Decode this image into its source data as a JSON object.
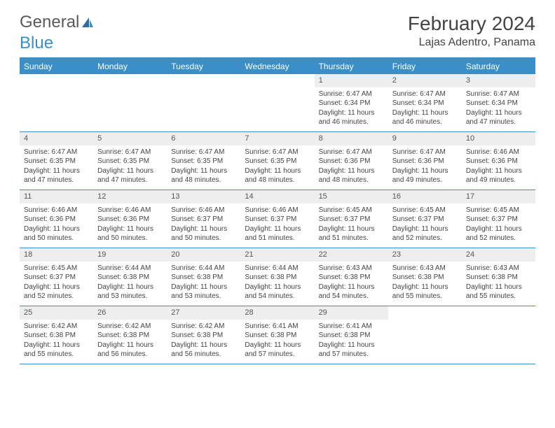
{
  "logo": {
    "text1": "General",
    "text2": "Blue"
  },
  "header": {
    "month": "February 2024",
    "location": "Lajas Adentro, Panama"
  },
  "colors": {
    "accent": "#3a8fc8",
    "header_bg": "#3a8fc8",
    "daynum_bg": "#eeeeee",
    "text": "#444444"
  },
  "days_of_week": [
    "Sunday",
    "Monday",
    "Tuesday",
    "Wednesday",
    "Thursday",
    "Friday",
    "Saturday"
  ],
  "weeks": [
    [
      {
        "day": null,
        "sunrise": "",
        "sunset": "",
        "daylight": ""
      },
      {
        "day": null,
        "sunrise": "",
        "sunset": "",
        "daylight": ""
      },
      {
        "day": null,
        "sunrise": "",
        "sunset": "",
        "daylight": ""
      },
      {
        "day": null,
        "sunrise": "",
        "sunset": "",
        "daylight": ""
      },
      {
        "day": "1",
        "sunrise": "Sunrise: 6:47 AM",
        "sunset": "Sunset: 6:34 PM",
        "daylight": "Daylight: 11 hours and 46 minutes."
      },
      {
        "day": "2",
        "sunrise": "Sunrise: 6:47 AM",
        "sunset": "Sunset: 6:34 PM",
        "daylight": "Daylight: 11 hours and 46 minutes."
      },
      {
        "day": "3",
        "sunrise": "Sunrise: 6:47 AM",
        "sunset": "Sunset: 6:34 PM",
        "daylight": "Daylight: 11 hours and 47 minutes."
      }
    ],
    [
      {
        "day": "4",
        "sunrise": "Sunrise: 6:47 AM",
        "sunset": "Sunset: 6:35 PM",
        "daylight": "Daylight: 11 hours and 47 minutes."
      },
      {
        "day": "5",
        "sunrise": "Sunrise: 6:47 AM",
        "sunset": "Sunset: 6:35 PM",
        "daylight": "Daylight: 11 hours and 47 minutes."
      },
      {
        "day": "6",
        "sunrise": "Sunrise: 6:47 AM",
        "sunset": "Sunset: 6:35 PM",
        "daylight": "Daylight: 11 hours and 48 minutes."
      },
      {
        "day": "7",
        "sunrise": "Sunrise: 6:47 AM",
        "sunset": "Sunset: 6:35 PM",
        "daylight": "Daylight: 11 hours and 48 minutes."
      },
      {
        "day": "8",
        "sunrise": "Sunrise: 6:47 AM",
        "sunset": "Sunset: 6:36 PM",
        "daylight": "Daylight: 11 hours and 48 minutes."
      },
      {
        "day": "9",
        "sunrise": "Sunrise: 6:47 AM",
        "sunset": "Sunset: 6:36 PM",
        "daylight": "Daylight: 11 hours and 49 minutes."
      },
      {
        "day": "10",
        "sunrise": "Sunrise: 6:46 AM",
        "sunset": "Sunset: 6:36 PM",
        "daylight": "Daylight: 11 hours and 49 minutes."
      }
    ],
    [
      {
        "day": "11",
        "sunrise": "Sunrise: 6:46 AM",
        "sunset": "Sunset: 6:36 PM",
        "daylight": "Daylight: 11 hours and 50 minutes."
      },
      {
        "day": "12",
        "sunrise": "Sunrise: 6:46 AM",
        "sunset": "Sunset: 6:36 PM",
        "daylight": "Daylight: 11 hours and 50 minutes."
      },
      {
        "day": "13",
        "sunrise": "Sunrise: 6:46 AM",
        "sunset": "Sunset: 6:37 PM",
        "daylight": "Daylight: 11 hours and 50 minutes."
      },
      {
        "day": "14",
        "sunrise": "Sunrise: 6:46 AM",
        "sunset": "Sunset: 6:37 PM",
        "daylight": "Daylight: 11 hours and 51 minutes."
      },
      {
        "day": "15",
        "sunrise": "Sunrise: 6:45 AM",
        "sunset": "Sunset: 6:37 PM",
        "daylight": "Daylight: 11 hours and 51 minutes."
      },
      {
        "day": "16",
        "sunrise": "Sunrise: 6:45 AM",
        "sunset": "Sunset: 6:37 PM",
        "daylight": "Daylight: 11 hours and 52 minutes."
      },
      {
        "day": "17",
        "sunrise": "Sunrise: 6:45 AM",
        "sunset": "Sunset: 6:37 PM",
        "daylight": "Daylight: 11 hours and 52 minutes."
      }
    ],
    [
      {
        "day": "18",
        "sunrise": "Sunrise: 6:45 AM",
        "sunset": "Sunset: 6:37 PM",
        "daylight": "Daylight: 11 hours and 52 minutes."
      },
      {
        "day": "19",
        "sunrise": "Sunrise: 6:44 AM",
        "sunset": "Sunset: 6:38 PM",
        "daylight": "Daylight: 11 hours and 53 minutes."
      },
      {
        "day": "20",
        "sunrise": "Sunrise: 6:44 AM",
        "sunset": "Sunset: 6:38 PM",
        "daylight": "Daylight: 11 hours and 53 minutes."
      },
      {
        "day": "21",
        "sunrise": "Sunrise: 6:44 AM",
        "sunset": "Sunset: 6:38 PM",
        "daylight": "Daylight: 11 hours and 54 minutes."
      },
      {
        "day": "22",
        "sunrise": "Sunrise: 6:43 AM",
        "sunset": "Sunset: 6:38 PM",
        "daylight": "Daylight: 11 hours and 54 minutes."
      },
      {
        "day": "23",
        "sunrise": "Sunrise: 6:43 AM",
        "sunset": "Sunset: 6:38 PM",
        "daylight": "Daylight: 11 hours and 55 minutes."
      },
      {
        "day": "24",
        "sunrise": "Sunrise: 6:43 AM",
        "sunset": "Sunset: 6:38 PM",
        "daylight": "Daylight: 11 hours and 55 minutes."
      }
    ],
    [
      {
        "day": "25",
        "sunrise": "Sunrise: 6:42 AM",
        "sunset": "Sunset: 6:38 PM",
        "daylight": "Daylight: 11 hours and 55 minutes."
      },
      {
        "day": "26",
        "sunrise": "Sunrise: 6:42 AM",
        "sunset": "Sunset: 6:38 PM",
        "daylight": "Daylight: 11 hours and 56 minutes."
      },
      {
        "day": "27",
        "sunrise": "Sunrise: 6:42 AM",
        "sunset": "Sunset: 6:38 PM",
        "daylight": "Daylight: 11 hours and 56 minutes."
      },
      {
        "day": "28",
        "sunrise": "Sunrise: 6:41 AM",
        "sunset": "Sunset: 6:38 PM",
        "daylight": "Daylight: 11 hours and 57 minutes."
      },
      {
        "day": "29",
        "sunrise": "Sunrise: 6:41 AM",
        "sunset": "Sunset: 6:38 PM",
        "daylight": "Daylight: 11 hours and 57 minutes."
      },
      {
        "day": null,
        "sunrise": "",
        "sunset": "",
        "daylight": ""
      },
      {
        "day": null,
        "sunrise": "",
        "sunset": "",
        "daylight": ""
      }
    ]
  ]
}
